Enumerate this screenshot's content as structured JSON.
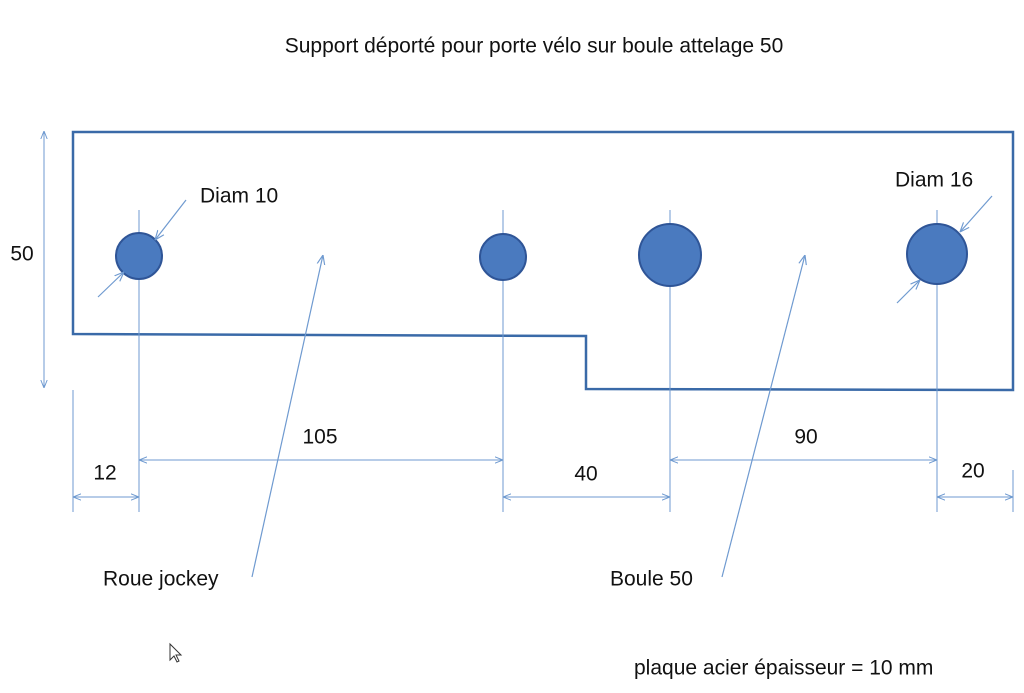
{
  "header": {
    "title": "Support déporté pour porte vélo sur boule attelage 50"
  },
  "labels": {
    "diam_small": "Diam 10",
    "diam_large": "Diam 16",
    "roue": "Roue jockey",
    "boule": "Boule 50",
    "note": "plaque acier épaisseur = 10 mm"
  },
  "dimensions": {
    "height": 50,
    "left": 12,
    "span_a": 105,
    "span_b": 40,
    "span_c": 90,
    "right": 20
  }
}
